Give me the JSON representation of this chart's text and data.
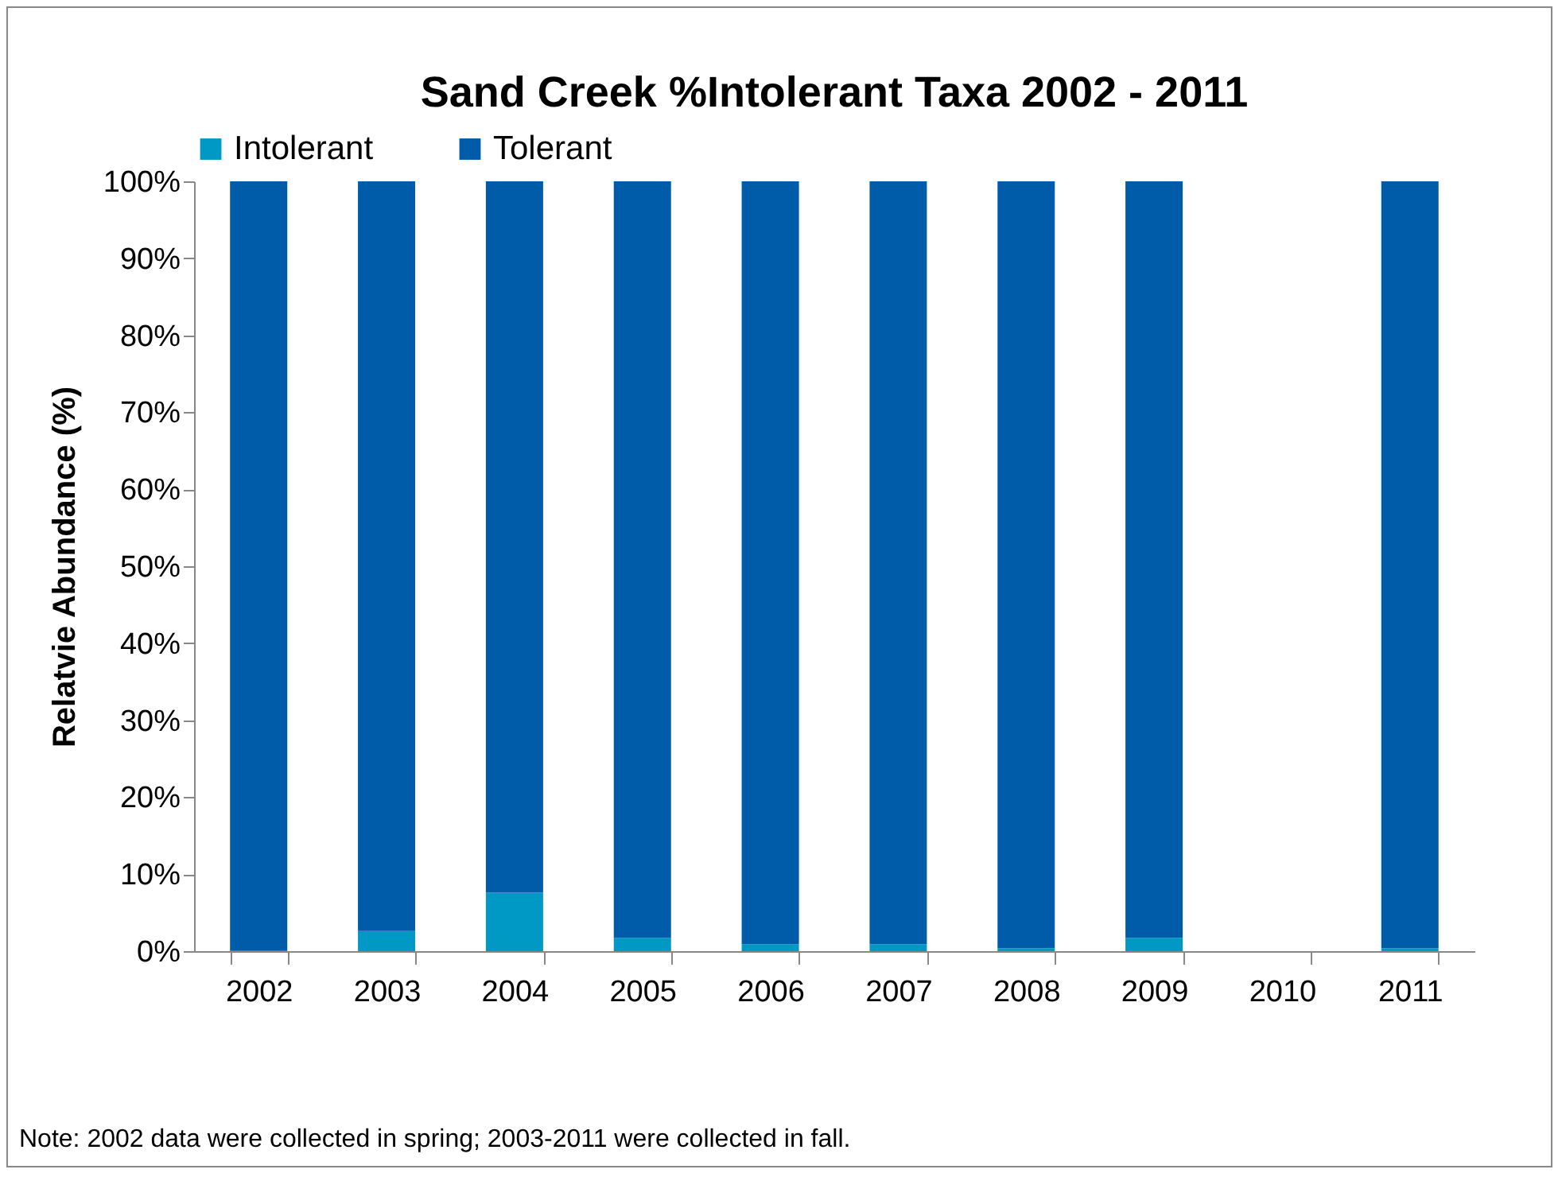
{
  "chart_data": {
    "type": "bar",
    "title": "Sand Creek %Intolerant Taxa 2002  - 2011",
    "ylabel": "Relatvie Abundance (%)",
    "categories": [
      "2002",
      "2003",
      "2004",
      "2005",
      "2006",
      "2007",
      "2008",
      "2009",
      "2010",
      "2011"
    ],
    "stacked": true,
    "series": [
      {
        "name": "Intolerant",
        "color": "#0099c6",
        "values": [
          0.1,
          2.6,
          7.6,
          1.7,
          0.9,
          0.9,
          0.4,
          1.7,
          null,
          0.4
        ]
      },
      {
        "name": "Tolerant",
        "color": "#005ba8",
        "values": [
          99.9,
          97.4,
          92.4,
          98.3,
          99.1,
          99.1,
          99.6,
          98.3,
          null,
          99.6
        ]
      }
    ],
    "ylim": [
      0,
      100
    ],
    "yticks": [
      {
        "value": 0,
        "label": "0%"
      },
      {
        "value": 10,
        "label": "10%"
      },
      {
        "value": 20,
        "label": "20%"
      },
      {
        "value": 30,
        "label": "30%"
      },
      {
        "value": 40,
        "label": "40%"
      },
      {
        "value": 50,
        "label": "50%"
      },
      {
        "value": 60,
        "label": "60%"
      },
      {
        "value": 70,
        "label": "70%"
      },
      {
        "value": 80,
        "label": "80%"
      },
      {
        "value": 90,
        "label": "90%"
      },
      {
        "value": 100,
        "label": "100%"
      }
    ],
    "legend": "top",
    "grid": false,
    "annotations": [
      "Note: 2002 data were collected in spring; 2003-2011 were collected in fall."
    ]
  }
}
